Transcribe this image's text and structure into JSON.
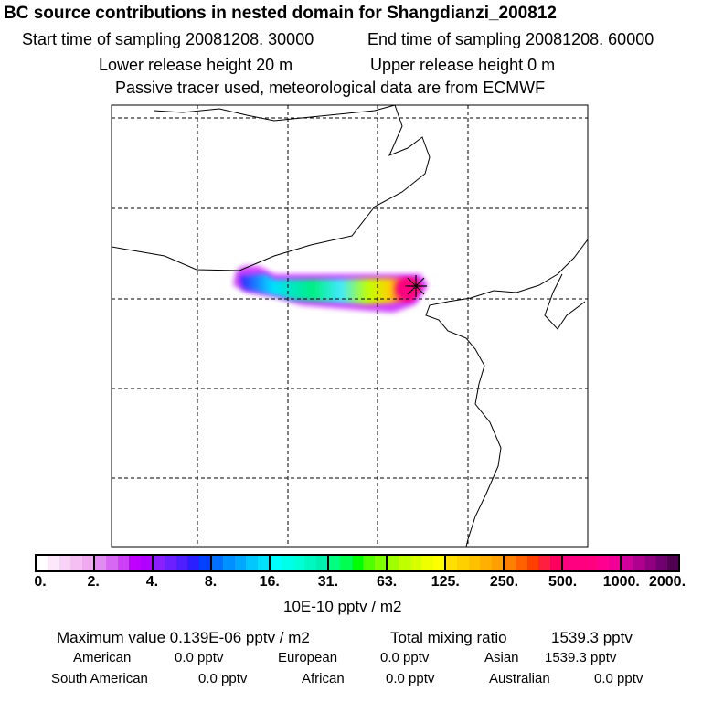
{
  "header": {
    "title": "BC  source contributions in nested domain for Shangdianzi_200812",
    "start": "Start time of sampling 20081208. 30000",
    "end": "End time of sampling 20081208. 60000",
    "lower": "Lower release height   20 m",
    "upper": "Upper release height    0 m",
    "note": "Passive tracer used, meteorological data are from ECMWF"
  },
  "colorbar": {
    "labels": [
      "0.",
      "2.",
      "4.",
      "8.",
      "16.",
      "31.",
      "63.",
      "125.",
      "250.",
      "500.",
      "1000.",
      "2000."
    ],
    "unit": "10E-10 pptv / m2",
    "colors": [
      [
        "#ffffff",
        "#fde8fb",
        "#f9d3f7",
        "#f5bff3",
        "#f0aaf0"
      ],
      [
        "#e08cf0",
        "#d668f4",
        "#cc40f8",
        "#c000ff",
        "#b000ff"
      ],
      [
        "#8a1fff",
        "#6a20ff",
        "#4e20ff",
        "#2a20ff",
        "#0040ff"
      ],
      [
        "#0070ff",
        "#0090ff",
        "#00a8ff",
        "#00c8ff",
        "#00e0ff"
      ],
      [
        "#00ffff",
        "#00ffe8",
        "#00ffd4",
        "#00f8c0",
        "#00f0b0"
      ],
      [
        "#00ff80",
        "#00ff50",
        "#00ff00",
        "#50ff00",
        "#80ff00"
      ],
      [
        "#a0ff00",
        "#c0ff00",
        "#d8ff00",
        "#f0ff00",
        "#ffff00"
      ],
      [
        "#ffe000",
        "#ffd000",
        "#ffc000",
        "#ffb000",
        "#ffa000"
      ],
      [
        "#ff8000",
        "#ff6000",
        "#ff4000",
        "#ff2040",
        "#ff0060"
      ],
      [
        "#ff0080",
        "#ff0080",
        "#ff0080",
        "#ff0090",
        "#f00098"
      ],
      [
        "#d0009a",
        "#b00090",
        "#900080",
        "#700070",
        "#500050"
      ]
    ]
  },
  "stats": {
    "max": "Maximum value  0.139E-06 pptv / m2",
    "total_label": "Total mixing ratio",
    "total": "1539.3 pptv",
    "regions": [
      {
        "name": "American",
        "value": "0.0 pptv"
      },
      {
        "name": "European",
        "value": "0.0 pptv"
      },
      {
        "name": "Asian",
        "value": "1539.3 pptv"
      },
      {
        "name": "South American",
        "value": "0.0 pptv"
      },
      {
        "name": "African",
        "value": "0.0 pptv"
      },
      {
        "name": "Australian",
        "value": "0.0 pptv"
      }
    ]
  }
}
